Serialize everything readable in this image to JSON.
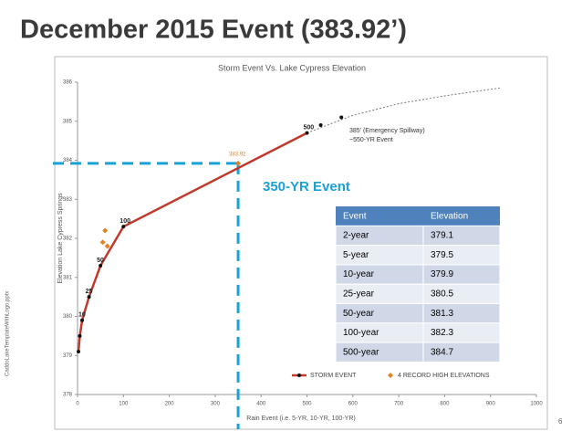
{
  "title": "December 2015 Event (383.92’)",
  "side_note": "CaddoLakeTemplateWithLogo.pptx",
  "slide_number": "6",
  "chart_data": {
    "type": "line",
    "title": "Storm Event Vs. Lake Cypress Elevation",
    "x_label": "Rain Event (i.e. 5-YR, 10-YR, 100-YR)",
    "y_label": "Elevation Lake Cypress Springs",
    "xlim": [
      0,
      1000
    ],
    "xticks": [
      0,
      100,
      200,
      300,
      400,
      500,
      600,
      700,
      800,
      900,
      1000
    ],
    "ylim": [
      378,
      386
    ],
    "yticks": [
      378,
      379,
      380,
      381,
      382,
      383,
      384,
      385,
      386
    ],
    "grid": false,
    "series": [
      {
        "name": "STORM EVENT",
        "color": "#c0392b",
        "x": [
          2,
          5,
          10,
          25,
          50,
          100,
          500
        ],
        "values": [
          379.1,
          379.5,
          379.9,
          380.5,
          381.3,
          382.3,
          384.7
        ],
        "value_labels": [
          null,
          null,
          "10",
          "25",
          "50",
          "100",
          "500"
        ]
      },
      {
        "name": "4 RECORD HIGH ELEVATIONS",
        "color": "#e67e22",
        "x": [
          55,
          60,
          65,
          350
        ],
        "values": [
          381.9,
          382.2,
          381.8,
          383.92
        ],
        "value_labels": [
          null,
          null,
          null,
          "383.92"
        ]
      },
      {
        "color": "#777777",
        "x": [
          500,
          600,
          700,
          800,
          920
        ],
        "values": [
          384.7,
          385.15,
          385.45,
          385.65,
          385.85
        ]
      },
      {
        "color": "#111111",
        "x": [
          530,
          575
        ],
        "values": [
          384.9,
          385.1
        ]
      }
    ],
    "annotations": [
      "385' (Emergency Spillway)",
      "~550-YR Event"
    ],
    "event_label": "350-YR Event",
    "event_x": 350,
    "event_y": 383.92
  },
  "table": {
    "header": [
      "Event",
      "Elevation"
    ],
    "rows": [
      [
        "2-year",
        379.1
      ],
      [
        "5-year",
        379.5
      ],
      [
        "10-year",
        379.9
      ],
      [
        "25-year",
        380.5
      ],
      [
        "50-year",
        381.3
      ],
      [
        "100-year",
        382.3
      ],
      [
        "500-year",
        384.7
      ]
    ]
  }
}
